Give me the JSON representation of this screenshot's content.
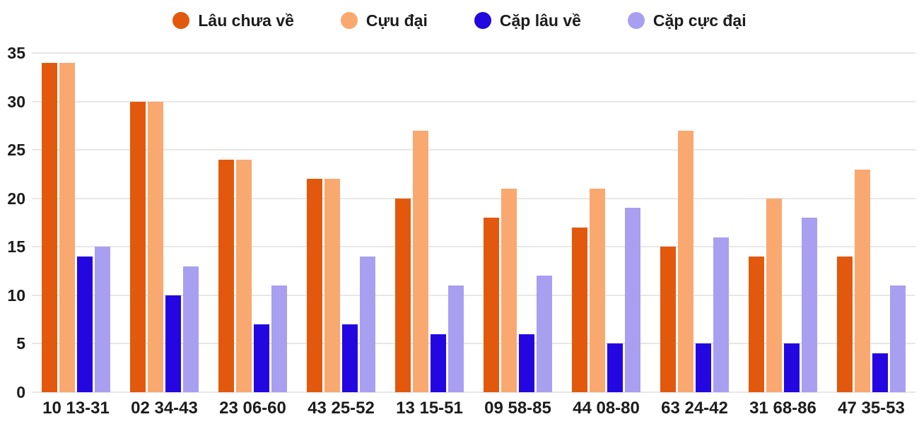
{
  "chart_data": {
    "type": "bar",
    "title": "",
    "xlabel": "",
    "ylabel": "",
    "ylim": [
      0,
      35
    ],
    "yticks": [
      0,
      5,
      10,
      15,
      20,
      25,
      30,
      35
    ],
    "grid": true,
    "legend_position": "top",
    "categories": [
      "10 13-31",
      "02 34-43",
      "23 06-60",
      "43 25-52",
      "13 15-51",
      "09 58-85",
      "44 08-80",
      "63 24-42",
      "31 68-86",
      "47 35-53"
    ],
    "series": [
      {
        "name": "Lâu chưa về",
        "color": "#e2590d",
        "values": [
          34,
          30,
          24,
          22,
          20,
          18,
          17,
          15,
          14,
          14
        ]
      },
      {
        "name": "Cựu đại",
        "color": "#f9a870",
        "values": [
          34,
          30,
          24,
          22,
          27,
          21,
          21,
          27,
          20,
          23
        ]
      },
      {
        "name": "Cặp lâu về",
        "color": "#2306e0",
        "values": [
          14,
          10,
          7,
          7,
          6,
          6,
          5,
          5,
          5,
          4
        ]
      },
      {
        "name": "Cặp cực đại",
        "color": "#a89ff1",
        "values": [
          15,
          13,
          11,
          14,
          11,
          12,
          19,
          16,
          18,
          11
        ]
      }
    ]
  },
  "colors": {
    "background": "#ffffff",
    "text": "#1c1c1c",
    "gridline": "#e7e7e7"
  }
}
